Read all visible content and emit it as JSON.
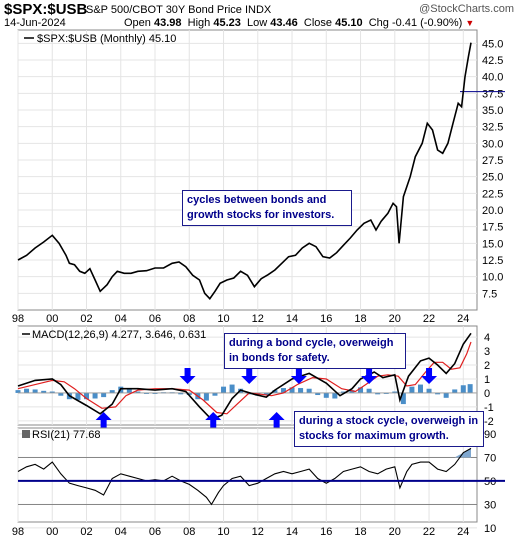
{
  "header": {
    "symbol": "$SPX:$USB",
    "description": "S&P 500/CBOT 30Y Bond Price INDX",
    "logo": "@StockCharts.com",
    "date": "14-Jun-2024",
    "open_label": "Open",
    "open": "43.98",
    "high_label": "High",
    "high": "45.23",
    "low_label": "Low",
    "low": "43.46",
    "close_label": "Close",
    "close": "45.10",
    "chg_label": "Chg",
    "chg": "-0.41 (-0.90%)"
  },
  "colors": {
    "price": "#000000",
    "macd": "#000000",
    "signal": "#e02020",
    "hist": "#4a8ec8",
    "arrow": "#0000ff",
    "rsi_line": "#000000",
    "rsi_area": "#7fa7cf",
    "blue_line": "#00008b"
  },
  "annotations": {
    "top": "cycles between bonds and growth stocks for investors.",
    "bond": "during a bond cycle, overweigh in bonds for safety.",
    "stock": "during a stock cycle, overweigh in stocks for maximum growth."
  },
  "chart_data": [
    {
      "type": "line",
      "panel": "price",
      "legend": "$SPX:$USB (Monthly) 45.10",
      "ylim": [
        5,
        47
      ],
      "y_ticks": [
        "45.0",
        "42.5",
        "40.0",
        "37.5",
        "35.0",
        "32.5",
        "30.0",
        "27.5",
        "25.0",
        "22.5",
        "20.0",
        "17.5",
        "15.0",
        "12.5",
        "10.0",
        "7.5"
      ],
      "x_ticks": [
        "98",
        "00",
        "02",
        "04",
        "06",
        "08",
        "10",
        "12",
        "14",
        "16",
        "18",
        "20",
        "22",
        "24"
      ],
      "x": [
        1998.0,
        1998.5,
        1999.0,
        1999.5,
        2000.0,
        2000.4,
        2000.8,
        2001.0,
        2001.3,
        2001.6,
        2001.9,
        2002.2,
        2002.5,
        2002.8,
        2003.2,
        2003.5,
        2003.8,
        2004.2,
        2004.6,
        2005.0,
        2005.5,
        2006.0,
        2006.5,
        2007.0,
        2007.4,
        2007.8,
        2008.2,
        2008.6,
        2008.9,
        2009.2,
        2009.5,
        2009.8,
        2010.2,
        2010.6,
        2011.0,
        2011.4,
        2011.8,
        2012.2,
        2012.6,
        2013.0,
        2013.4,
        2013.8,
        2014.2,
        2014.6,
        2015.0,
        2015.4,
        2015.8,
        2016.2,
        2016.6,
        2017.0,
        2017.4,
        2017.8,
        2018.2,
        2018.6,
        2018.9,
        2019.2,
        2019.6,
        2019.9,
        2020.1,
        2020.25,
        2020.5,
        2020.9,
        2021.2,
        2021.6,
        2021.9,
        2022.2,
        2022.5,
        2022.8,
        2023.1,
        2023.4,
        2023.7,
        2023.9,
        2024.1,
        2024.3,
        2024.45
      ],
      "y": [
        12.5,
        13.2,
        14.3,
        15.2,
        16.2,
        15.0,
        13.2,
        12.0,
        11.8,
        10.8,
        10.5,
        11.2,
        9.5,
        7.8,
        8.8,
        10.0,
        10.8,
        10.5,
        10.5,
        10.8,
        10.9,
        11.3,
        11.3,
        12.0,
        12.2,
        11.5,
        10.2,
        9.5,
        7.5,
        6.7,
        7.8,
        9.0,
        9.5,
        9.8,
        10.8,
        10.2,
        8.5,
        9.7,
        10.3,
        11.0,
        12.0,
        13.0,
        13.2,
        14.3,
        15.0,
        14.5,
        13.0,
        12.8,
        13.6,
        14.7,
        15.8,
        17.0,
        18.0,
        18.5,
        17.0,
        18.3,
        19.5,
        21.0,
        20.5,
        15.0,
        22.0,
        25.0,
        28.0,
        30.0,
        33.0,
        32.0,
        29.0,
        28.5,
        30.0,
        33.0,
        36.0,
        35.5,
        40.0,
        43.0,
        45.1
      ],
      "horizontal_line": 37.75
    },
    {
      "type": "line",
      "panel": "macd",
      "legend": "MACD(12,26,9) 4.277, 3.646, 0.631",
      "ylim": [
        -2.3,
        4.8
      ],
      "y_ticks": [
        "4",
        "3",
        "2",
        "1",
        "0",
        "-1",
        "-2"
      ],
      "series": [
        {
          "name": "MACD",
          "x": [
            1998,
            1999,
            2000,
            2000.5,
            2001,
            2002,
            2002.8,
            2003.5,
            2004,
            2005,
            2006,
            2007,
            2007.8,
            2008.6,
            2009.3,
            2009.9,
            2010.5,
            2011,
            2011.8,
            2012.5,
            2013,
            2014,
            2015,
            2016,
            2016.8,
            2017.5,
            2018,
            2018.8,
            2019.3,
            2020,
            2020.3,
            2020.8,
            2021.5,
            2022,
            2022.5,
            2023,
            2023.5,
            2024,
            2024.45
          ],
          "y": [
            0.5,
            0.9,
            1.0,
            0.6,
            -0.2,
            -0.9,
            -1.5,
            -0.8,
            0.3,
            0.3,
            0.2,
            0.3,
            0.1,
            -1.0,
            -1.9,
            -1.6,
            -0.4,
            0.2,
            -0.1,
            -0.3,
            0.2,
            1.0,
            1.4,
            0.7,
            -0.2,
            0.3,
            1.0,
            1.5,
            1.1,
            1.3,
            -0.5,
            1.2,
            2.3,
            2.5,
            2.0,
            1.4,
            2.1,
            3.5,
            4.28
          ]
        },
        {
          "name": "Signal",
          "x": [
            1998,
            1999,
            2000,
            2000.7,
            2001.3,
            2002,
            2002.9,
            2003.7,
            2004.3,
            2005,
            2006,
            2007,
            2008,
            2008.8,
            2009.6,
            2010.2,
            2010.8,
            2011.5,
            2012.2,
            2012.8,
            2013.5,
            2014.3,
            2015.2,
            2016,
            2016.9,
            2017.7,
            2018.3,
            2019,
            2019.6,
            2020.2,
            2020.7,
            2021.2,
            2021.8,
            2022.3,
            2022.8,
            2023.3,
            2023.8,
            2024.2,
            2024.45
          ],
          "y": [
            0.3,
            0.6,
            0.9,
            0.8,
            0.3,
            -0.4,
            -1.1,
            -1.0,
            -0.2,
            0.2,
            0.3,
            0.3,
            0.2,
            -0.5,
            -1.4,
            -1.5,
            -0.8,
            0.0,
            -0.1,
            -0.2,
            0.0,
            0.6,
            1.1,
            1.0,
            0.3,
            0.1,
            0.6,
            1.2,
            1.3,
            1.2,
            0.5,
            0.6,
            1.5,
            2.2,
            2.2,
            1.7,
            1.8,
            2.8,
            3.65
          ]
        }
      ],
      "histogram_x": [
        1998,
        1998.5,
        1999,
        1999.5,
        2000,
        2000.5,
        2001,
        2001.5,
        2002,
        2002.5,
        2003,
        2003.5,
        2004,
        2004.5,
        2005,
        2005.5,
        2006,
        2006.5,
        2007,
        2007.5,
        2008,
        2008.5,
        2009,
        2009.5,
        2010,
        2010.5,
        2011,
        2011.5,
        2012,
        2012.5,
        2013,
        2013.5,
        2014,
        2014.5,
        2015,
        2015.5,
        2016,
        2016.5,
        2017,
        2017.5,
        2018,
        2018.5,
        2019,
        2019.5,
        2020,
        2020.5,
        2021,
        2021.5,
        2022,
        2022.5,
        2023,
        2023.5,
        2024,
        2024.4
      ],
      "histogram_y": [
        0.2,
        0.3,
        0.25,
        0.15,
        0.1,
        -0.2,
        -0.45,
        -0.5,
        -0.45,
        -0.4,
        -0.3,
        0.2,
        0.45,
        0.3,
        0.1,
        0.0,
        -0.05,
        0.05,
        0.05,
        -0.1,
        -0.15,
        -0.45,
        -0.55,
        -0.2,
        0.45,
        0.6,
        0.3,
        -0.1,
        -0.2,
        -0.15,
        0.2,
        0.35,
        0.4,
        0.35,
        0.3,
        -0.15,
        -0.35,
        -0.4,
        0.1,
        0.2,
        0.4,
        0.3,
        -0.1,
        -0.05,
        0.1,
        -0.8,
        0.45,
        0.6,
        0.3,
        -0.1,
        -0.35,
        0.25,
        0.55,
        0.63
      ],
      "arrows": [
        {
          "x": 2003.0,
          "dir": "up"
        },
        {
          "x": 2007.9,
          "dir": "down"
        },
        {
          "x": 2009.4,
          "dir": "up"
        },
        {
          "x": 2011.5,
          "dir": "down"
        },
        {
          "x": 2013.1,
          "dir": "up"
        },
        {
          "x": 2014.4,
          "dir": "down"
        },
        {
          "x": 2016.5,
          "dir": "up"
        },
        {
          "x": 2018.5,
          "dir": "down"
        },
        {
          "x": 2020.7,
          "dir": "up"
        },
        {
          "x": 2022.0,
          "dir": "down"
        },
        {
          "x": 2023.1,
          "dir": "up"
        }
      ]
    },
    {
      "type": "area",
      "panel": "rsi",
      "legend": "RSI(21) 77.68",
      "ylim": [
        15,
        95
      ],
      "y_ticks": [
        "90",
        "70",
        "50",
        "30",
        "10"
      ],
      "x_ticks": [
        "98",
        "00",
        "02",
        "04",
        "06",
        "08",
        "10",
        "12",
        "14",
        "16",
        "18",
        "20",
        "22",
        "24"
      ],
      "x": [
        1998,
        1998.5,
        1999,
        1999.5,
        2000,
        2000.5,
        2001,
        2001.5,
        2002,
        2002.5,
        2003,
        2003.5,
        2004,
        2004.5,
        2005,
        2005.5,
        2006,
        2006.5,
        2007,
        2007.5,
        2008,
        2008.5,
        2009,
        2009.3,
        2009.7,
        2010,
        2010.5,
        2011,
        2011.5,
        2012,
        2012.5,
        2013,
        2013.5,
        2014,
        2014.5,
        2015,
        2015.5,
        2016,
        2016.5,
        2017,
        2017.5,
        2018,
        2018.5,
        2019,
        2019.5,
        2020,
        2020.3,
        2020.7,
        2021,
        2021.5,
        2022,
        2022.5,
        2023,
        2023.5,
        2024,
        2024.45
      ],
      "y": [
        58,
        62,
        64,
        60,
        66,
        56,
        48,
        46,
        44,
        42,
        38,
        52,
        56,
        54,
        52,
        50,
        51,
        50,
        54,
        50,
        47,
        42,
        36,
        30,
        40,
        46,
        52,
        54,
        46,
        48,
        52,
        56,
        58,
        56,
        58,
        60,
        52,
        48,
        52,
        58,
        60,
        62,
        58,
        56,
        60,
        62,
        44,
        58,
        64,
        66,
        66,
        60,
        58,
        64,
        74,
        77.68
      ],
      "horizontal_line": 50
    }
  ]
}
